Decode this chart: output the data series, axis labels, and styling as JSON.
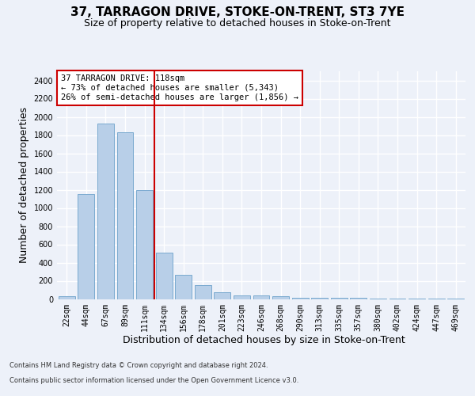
{
  "title": "37, TARRAGON DRIVE, STOKE-ON-TRENT, ST3 7YE",
  "subtitle": "Size of property relative to detached houses in Stoke-on-Trent",
  "xlabel": "Distribution of detached houses by size in Stoke-on-Trent",
  "ylabel": "Number of detached properties",
  "categories": [
    "22sqm",
    "44sqm",
    "67sqm",
    "89sqm",
    "111sqm",
    "134sqm",
    "156sqm",
    "178sqm",
    "201sqm",
    "223sqm",
    "246sqm",
    "268sqm",
    "290sqm",
    "313sqm",
    "335sqm",
    "357sqm",
    "380sqm",
    "402sqm",
    "424sqm",
    "447sqm",
    "469sqm"
  ],
  "values": [
    30,
    1150,
    1930,
    1830,
    1200,
    510,
    265,
    155,
    75,
    40,
    40,
    30,
    10,
    10,
    15,
    10,
    5,
    5,
    5,
    5,
    5
  ],
  "bar_color": "#b8cfe8",
  "bar_edge_color": "#7aaad0",
  "vline_x": 4.5,
  "vline_color": "#cc0000",
  "annotation_text": "37 TARRAGON DRIVE: 118sqm\n← 73% of detached houses are smaller (5,343)\n26% of semi-detached houses are larger (1,856) →",
  "annotation_box_facecolor": "#ffffff",
  "annotation_box_edgecolor": "#cc0000",
  "ylim": [
    0,
    2500
  ],
  "yticks": [
    0,
    200,
    400,
    600,
    800,
    1000,
    1200,
    1400,
    1600,
    1800,
    2000,
    2200,
    2400
  ],
  "footer1": "Contains HM Land Registry data © Crown copyright and database right 2024.",
  "footer2": "Contains public sector information licensed under the Open Government Licence v3.0.",
  "bg_color": "#edf1f9",
  "grid_color": "#ffffff",
  "title_fontsize": 11,
  "subtitle_fontsize": 9,
  "ylabel_fontsize": 9,
  "xlabel_fontsize": 9,
  "tick_fontsize": 7,
  "annot_fontsize": 7.5,
  "footer_fontsize": 6
}
